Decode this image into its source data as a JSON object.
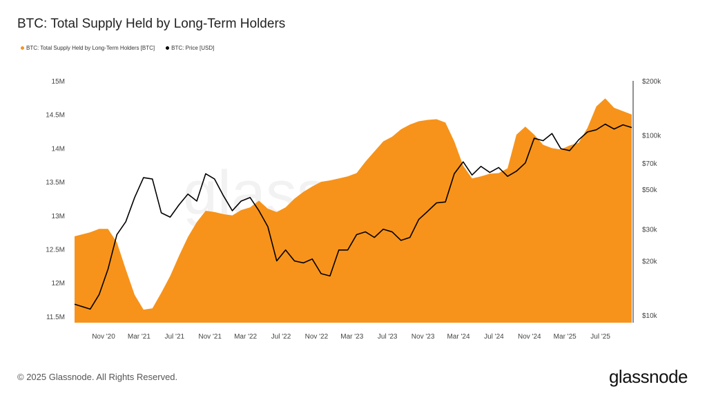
{
  "title": "BTC: Total Supply Held by Long-Term Holders",
  "footer": "© 2025 Glassnode. All Rights Reserved.",
  "logo": "glassnode",
  "watermark": "glassnode",
  "chart_data": {
    "type": "area+line",
    "title": "BTC: Total Supply Held by Long-Term Holders",
    "legend_placement": "top-left",
    "grid": false,
    "x_ticks": [
      "Nov '20",
      "Mar '21",
      "Jul '21",
      "Nov '21",
      "Mar '22",
      "Jul '22",
      "Nov '22",
      "Mar '23",
      "Jul '23",
      "Nov '23",
      "Mar '24",
      "Jul '24",
      "Nov '24",
      "Mar '25",
      "Jul '25"
    ],
    "y_left": {
      "ticks": [
        "15M",
        "14.5M",
        "14M",
        "13.5M",
        "13M",
        "12.5M",
        "12M",
        "11.5M"
      ],
      "range": [
        11500000,
        15000000
      ]
    },
    "y_right": {
      "scale": "log",
      "ticks": [
        "$200k",
        "$100k",
        "$70k",
        "$50k",
        "$30k",
        "$20k",
        "$10k"
      ],
      "tick_values": [
        200000,
        100000,
        70000,
        50000,
        30000,
        20000,
        10000
      ],
      "range": [
        10000,
        200000
      ]
    },
    "x": [
      "2020-08",
      "2020-09",
      "2020-10",
      "2020-11",
      "2020-12",
      "2021-01",
      "2021-02",
      "2021-03",
      "2021-04",
      "2021-05",
      "2021-06",
      "2021-07",
      "2021-08",
      "2021-09",
      "2021-10",
      "2021-11",
      "2021-12",
      "2022-01",
      "2022-02",
      "2022-03",
      "2022-04",
      "2022-05",
      "2022-06",
      "2022-07",
      "2022-08",
      "2022-09",
      "2022-10",
      "2022-11",
      "2022-12",
      "2023-01",
      "2023-02",
      "2023-03",
      "2023-04",
      "2023-05",
      "2023-06",
      "2023-07",
      "2023-08",
      "2023-09",
      "2023-10",
      "2023-11",
      "2023-12",
      "2024-01",
      "2024-02",
      "2024-03",
      "2024-04",
      "2024-05",
      "2024-06",
      "2024-07",
      "2024-08",
      "2024-09",
      "2024-10",
      "2024-11",
      "2024-12",
      "2025-01",
      "2025-02",
      "2025-03",
      "2025-04",
      "2025-05",
      "2025-06",
      "2025-07",
      "2025-08",
      "2025-09",
      "2025-10"
    ],
    "series": [
      {
        "name": "BTC: Total Supply Held by Long-Term Holders [BTC]",
        "color": "#f7931a",
        "axis": "left",
        "type": "area",
        "values": [
          12690000,
          12750000,
          12800000,
          12800000,
          12600000,
          12200000,
          11820000,
          11600000,
          11620000,
          11850000,
          12100000,
          12400000,
          12680000,
          12900000,
          13070000,
          13050000,
          13020000,
          13000000,
          13080000,
          13120000,
          13220000,
          13100000,
          13050000,
          13120000,
          13250000,
          13350000,
          13430000,
          13500000,
          13520000,
          13550000,
          13580000,
          13630000,
          13800000,
          13950000,
          14100000,
          14170000,
          14280000,
          14350000,
          14400000,
          14420000,
          14430000,
          14380000,
          14100000,
          13740000,
          13550000,
          13580000,
          13620000,
          13630000,
          13700000,
          14200000,
          14320000,
          14200000,
          14050000,
          14000000,
          13980000,
          14040000,
          14080000,
          14300000,
          14620000,
          14740000,
          14600000,
          14550000,
          14500000
        ]
      },
      {
        "name": "BTC: Price [USD]",
        "color": "#000000",
        "axis": "right",
        "type": "line",
        "values": [
          11500,
          10800,
          13000,
          18000,
          28000,
          33000,
          45000,
          58000,
          57000,
          37000,
          35000,
          41000,
          47000,
          43000,
          61000,
          57000,
          46000,
          38000,
          43000,
          45000,
          38000,
          31000,
          20000,
          23000,
          20000,
          19500,
          20500,
          17000,
          16500,
          23000,
          23000,
          28000,
          29000,
          27000,
          30000,
          29000,
          26000,
          27000,
          34000,
          37700,
          42000,
          42500,
          61000,
          71000,
          60000,
          67000,
          62000,
          66000,
          59000,
          63000,
          70000,
          96000,
          93000,
          102000,
          84000,
          82000,
          94000,
          104000,
          107000,
          115000,
          108000,
          114000,
          110000
        ]
      }
    ]
  }
}
